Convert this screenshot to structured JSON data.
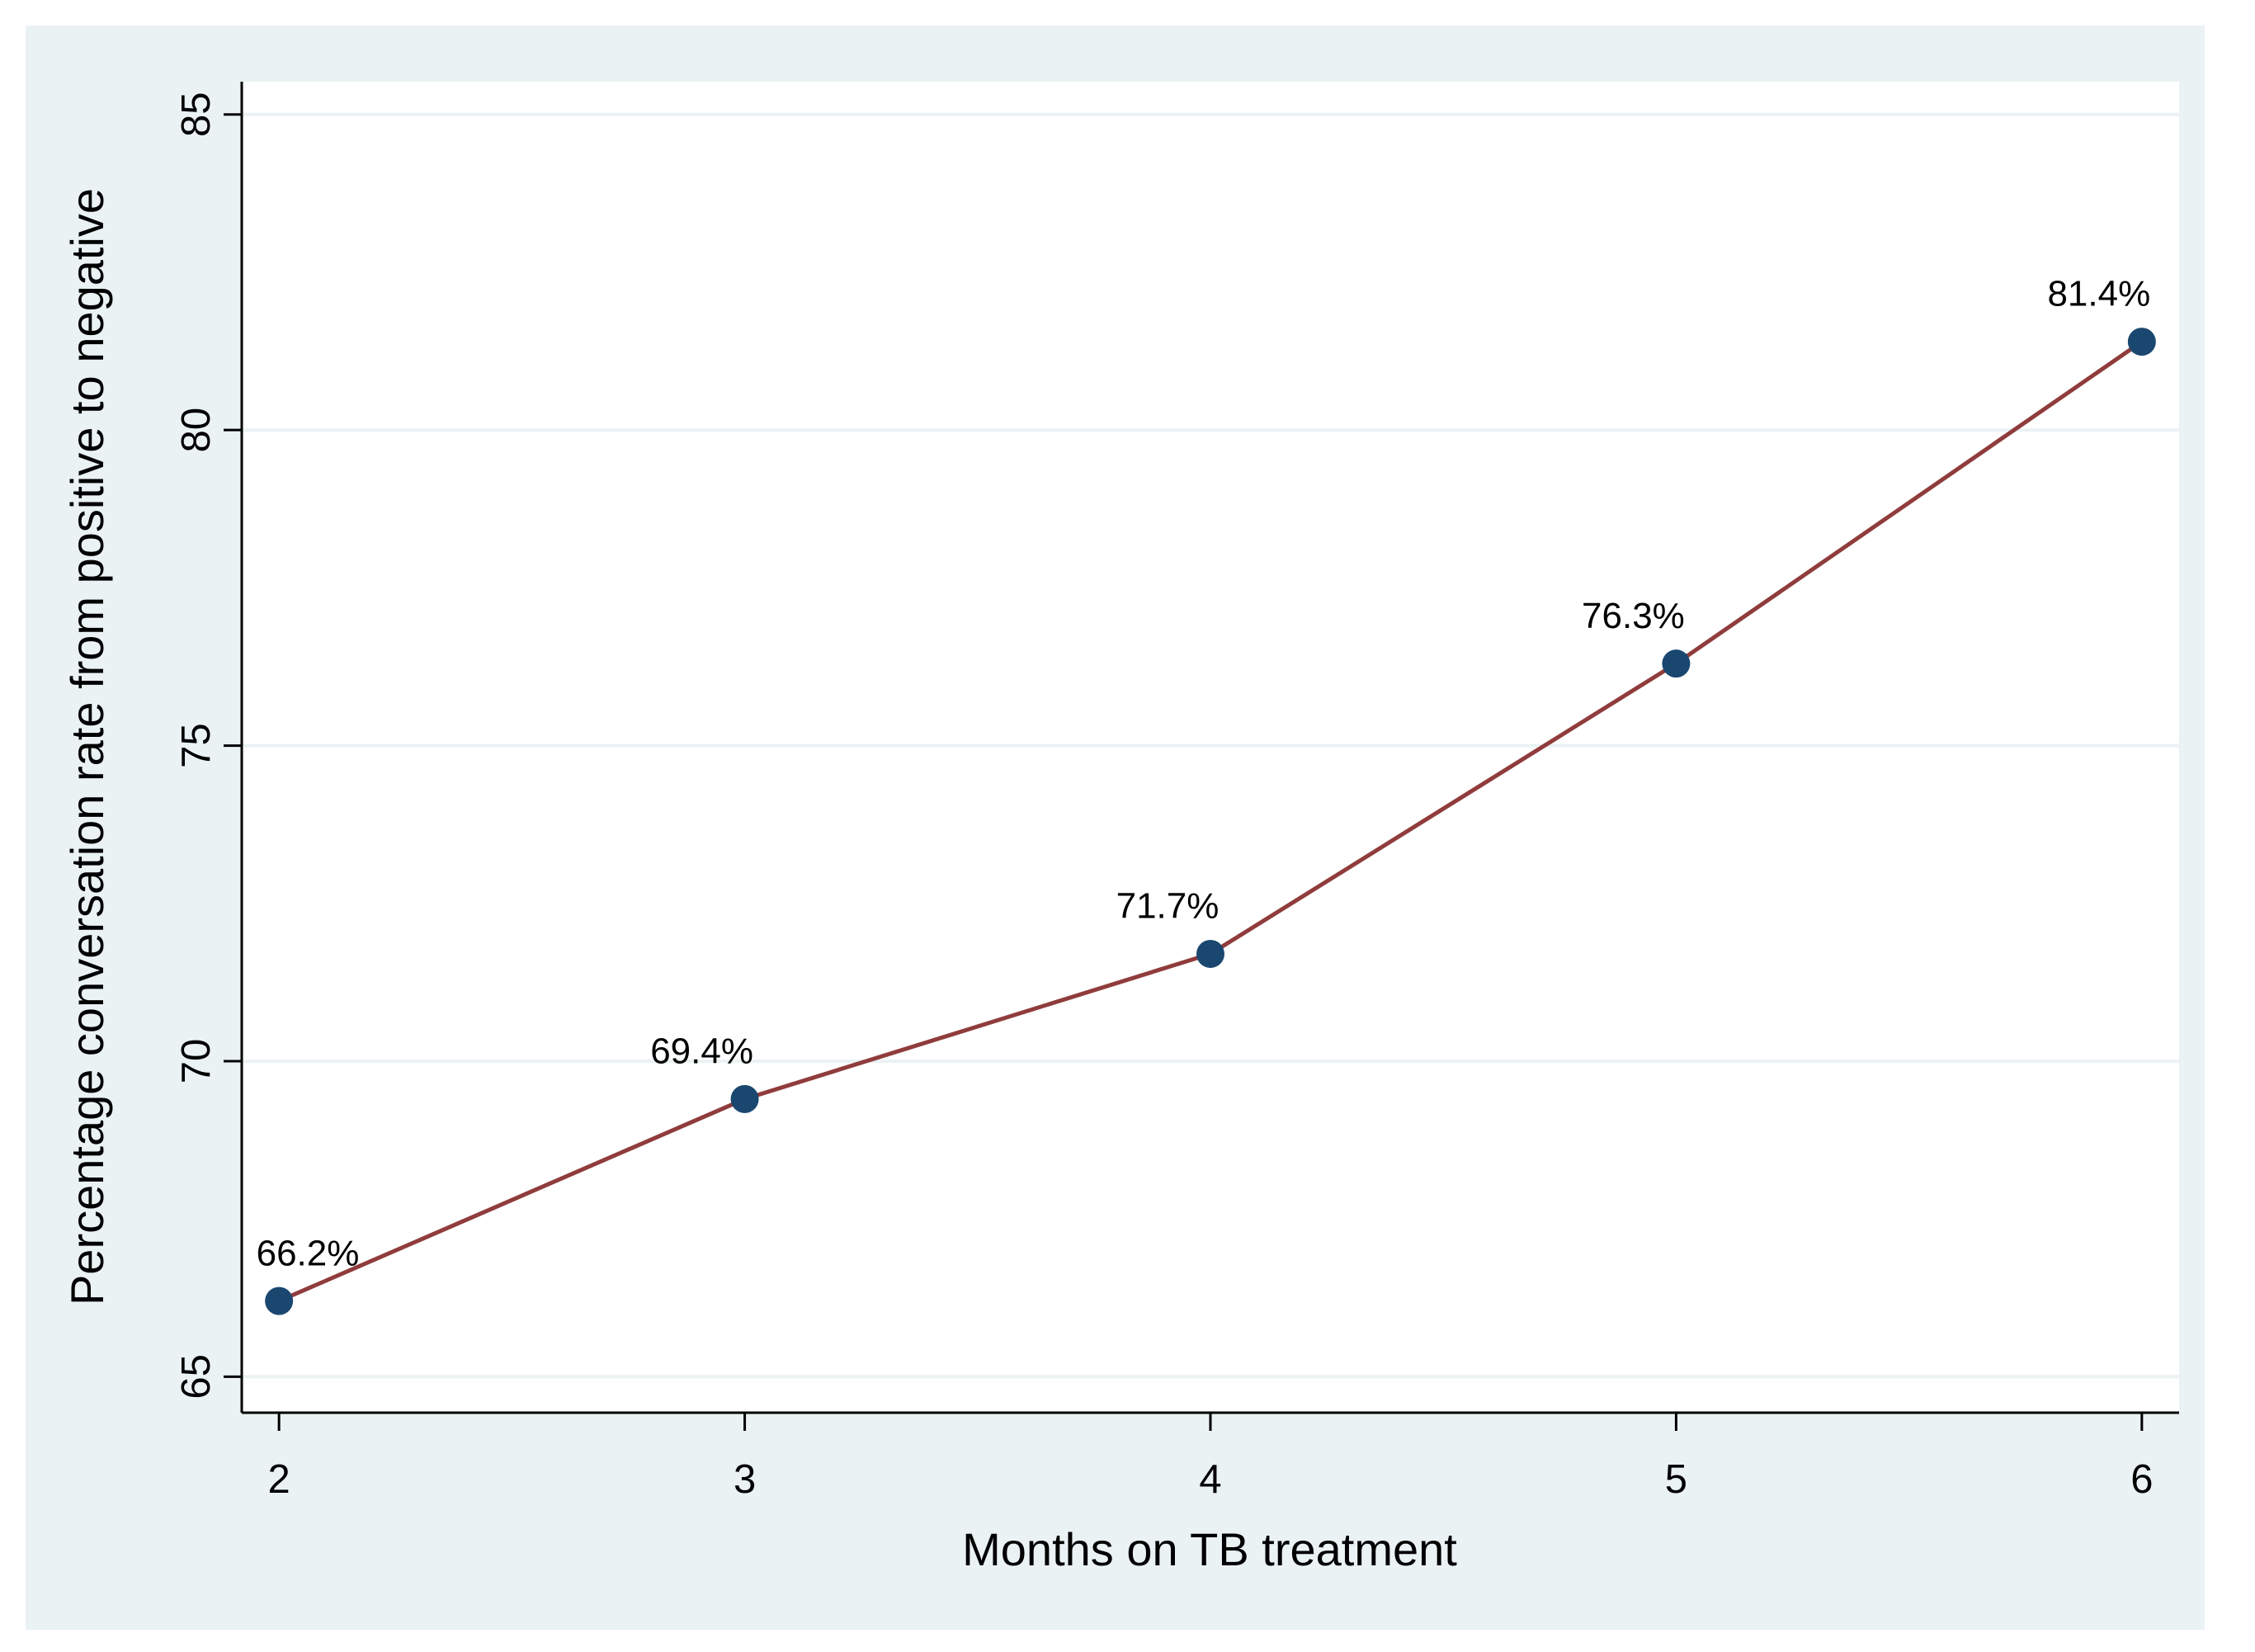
{
  "chart_data": {
    "type": "line",
    "x_label": "Months on TB treatment",
    "y_label": "Percentage conversation rate from positive to negative",
    "x": [
      2,
      3,
      4,
      5,
      6
    ],
    "series": [
      {
        "color": "#903c3c",
        "marker_color": "#1a476f",
        "values": [
          66.2,
          69.4,
          71.7,
          76.3,
          81.4
        ],
        "value_labels": [
          "66.2%",
          "69.4%",
          "71.7%",
          "76.3%",
          "81.4%"
        ]
      }
    ],
    "xlim": [
      1.92,
      6.08
    ],
    "xticks": [
      2,
      3,
      4,
      5,
      6
    ],
    "ylim": [
      64.43,
      85.52
    ],
    "yticks": [
      65,
      70,
      75,
      80,
      85
    ],
    "grid": true
  }
}
